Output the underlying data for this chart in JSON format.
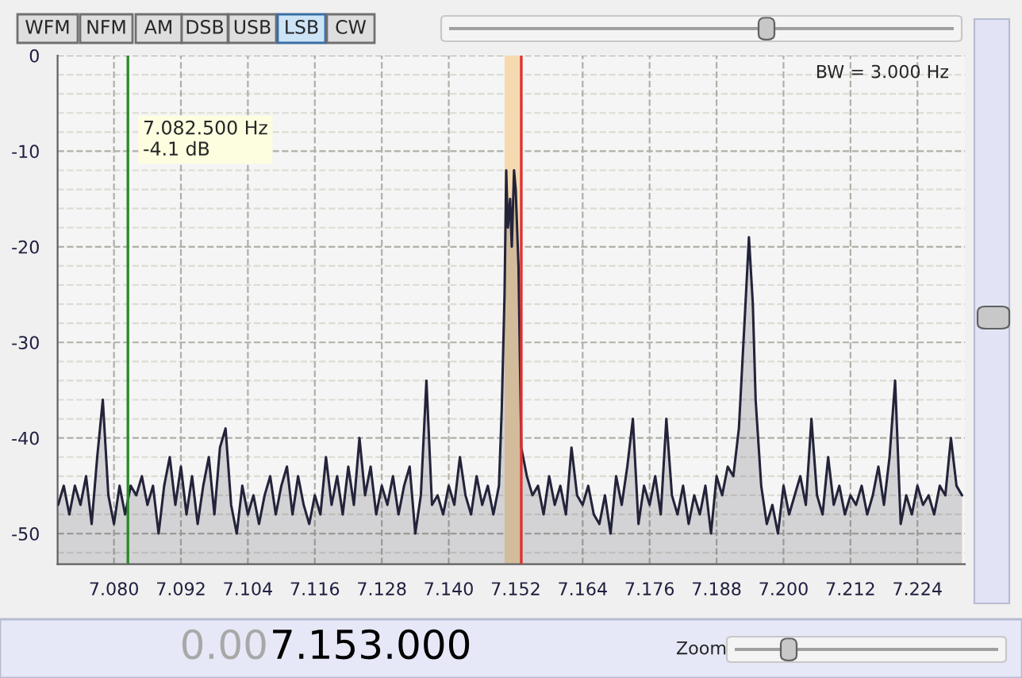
{
  "chart_data": {
    "type": "area",
    "x": [
      7.07,
      7.071,
      7.072,
      7.073,
      7.074,
      7.075,
      7.076,
      7.077,
      7.078,
      7.079,
      7.08,
      7.081,
      7.082,
      7.083,
      7.084,
      7.085,
      7.086,
      7.087,
      7.088,
      7.089,
      7.09,
      7.091,
      7.092,
      7.093,
      7.094,
      7.095,
      7.096,
      7.097,
      7.098,
      7.099,
      7.1,
      7.101,
      7.102,
      7.103,
      7.104,
      7.105,
      7.106,
      7.107,
      7.108,
      7.109,
      7.11,
      7.111,
      7.112,
      7.113,
      7.114,
      7.115,
      7.116,
      7.117,
      7.118,
      7.119,
      7.12,
      7.121,
      7.122,
      7.123,
      7.124,
      7.125,
      7.126,
      7.127,
      7.128,
      7.129,
      7.13,
      7.131,
      7.132,
      7.133,
      7.134,
      7.135,
      7.136,
      7.137,
      7.138,
      7.139,
      7.14,
      7.141,
      7.142,
      7.143,
      7.144,
      7.145,
      7.146,
      7.147,
      7.148,
      7.149,
      7.1495,
      7.15,
      7.1503,
      7.1506,
      7.151,
      7.1513,
      7.1517,
      7.152,
      7.1525,
      7.153,
      7.154,
      7.155,
      7.156,
      7.157,
      7.158,
      7.159,
      7.16,
      7.161,
      7.162,
      7.163,
      7.164,
      7.165,
      7.166,
      7.167,
      7.168,
      7.169,
      7.17,
      7.171,
      7.172,
      7.173,
      7.174,
      7.175,
      7.176,
      7.177,
      7.178,
      7.179,
      7.18,
      7.181,
      7.182,
      7.183,
      7.184,
      7.185,
      7.186,
      7.187,
      7.188,
      7.189,
      7.19,
      7.191,
      7.192,
      7.193,
      7.1938,
      7.1945,
      7.195,
      7.196,
      7.197,
      7.198,
      7.199,
      7.2,
      7.201,
      7.202,
      7.203,
      7.204,
      7.205,
      7.206,
      7.207,
      7.208,
      7.209,
      7.21,
      7.211,
      7.212,
      7.213,
      7.214,
      7.215,
      7.216,
      7.217,
      7.218,
      7.219,
      7.22,
      7.221,
      7.222,
      7.223,
      7.224,
      7.225,
      7.226,
      7.227,
      7.228,
      7.229,
      7.23,
      7.231,
      7.232
    ],
    "series": [
      {
        "color": "#23233a",
        "values": [
          -47,
          -45,
          -48,
          -45,
          -47,
          -44,
          -49,
          -42,
          -36,
          -46,
          -49,
          -45,
          -48,
          -45,
          -46,
          -44,
          -47,
          -45,
          -50,
          -45,
          -42,
          -47,
          -43,
          -48,
          -44,
          -49,
          -45,
          -42,
          -48,
          -41,
          -39,
          -47,
          -50,
          -45,
          -48,
          -46,
          -49,
          -46,
          -44,
          -48,
          -45,
          -43,
          -48,
          -44,
          -47,
          -49,
          -46,
          -48,
          -42,
          -47,
          -44,
          -48,
          -43,
          -47,
          -40,
          -46,
          -43,
          -48,
          -45,
          -47,
          -44,
          -48,
          -45,
          -43,
          -50,
          -46,
          -34,
          -47,
          -46,
          -48,
          -45,
          -47,
          -42,
          -46,
          -48,
          -44,
          -47,
          -45,
          -48,
          -45,
          -37,
          -25,
          -12,
          -18,
          -15,
          -20,
          -12,
          -14,
          -22,
          -41,
          -44,
          -46,
          -45,
          -48,
          -44,
          -47,
          -45,
          -48,
          -41,
          -46,
          -47,
          -45,
          -48,
          -49,
          -46,
          -50,
          -44,
          -47,
          -43,
          -38,
          -49,
          -45,
          -47,
          -44,
          -48,
          -38,
          -46,
          -48,
          -45,
          -49,
          -46,
          -48,
          -45,
          -50,
          -44,
          -46,
          -43,
          -44,
          -39,
          -28,
          -19,
          -26,
          -36,
          -45,
          -49,
          -47,
          -50,
          -45,
          -48,
          -46,
          -44,
          -47,
          -38,
          -46,
          -48,
          -42,
          -47,
          -45,
          -48,
          -46,
          -47,
          -45,
          -48,
          -46,
          -43,
          -47,
          -42,
          -34,
          -49,
          -46,
          -48,
          -45,
          -47,
          -46,
          -48,
          -45,
          -46,
          -40,
          -45,
          -46
        ]
      }
    ],
    "xlim": [
      7.0699,
      7.2325
    ],
    "xticks": [
      {
        "value": 7.08,
        "label": "7.080"
      },
      {
        "value": 7.092,
        "label": "7.092"
      },
      {
        "value": 7.104,
        "label": "7.104"
      },
      {
        "value": 7.116,
        "label": "7.116"
      },
      {
        "value": 7.128,
        "label": "7.128"
      },
      {
        "value": 7.14,
        "label": "7.140"
      },
      {
        "value": 7.152,
        "label": "7.152"
      },
      {
        "value": 7.164,
        "label": "7.164"
      },
      {
        "value": 7.176,
        "label": "7.176"
      },
      {
        "value": 7.188,
        "label": "7.188"
      },
      {
        "value": 7.2,
        "label": "7.200"
      },
      {
        "value": 7.212,
        "label": "7.212"
      },
      {
        "value": 7.224,
        "label": "7.224"
      }
    ],
    "ylim": [
      -53.2,
      0
    ],
    "yticks": [
      0,
      {
        "value": -2,
        "label": null
      },
      {
        "value": -4,
        "label": null
      },
      {
        "value": -6,
        "label": null
      },
      {
        "value": -8,
        "label": null
      },
      -10,
      {
        "value": -12,
        "label": null
      },
      {
        "value": -14,
        "label": null
      },
      {
        "value": -16,
        "label": null
      },
      {
        "value": -18,
        "label": null
      },
      -20,
      {
        "value": -22,
        "label": null
      },
      {
        "value": -24,
        "label": null
      },
      {
        "value": -26,
        "label": null
      },
      {
        "value": -28,
        "label": null
      },
      -30,
      {
        "value": -32,
        "label": null
      },
      {
        "value": -34,
        "label": null
      },
      {
        "value": -36,
        "label": null
      },
      {
        "value": -38,
        "label": null
      },
      -40,
      {
        "value": -42,
        "label": null
      },
      {
        "value": -44,
        "label": null
      },
      {
        "value": -46,
        "label": null
      },
      {
        "value": -48,
        "label": null
      },
      -50,
      {
        "value": -52,
        "label": null
      }
    ],
    "grid": true,
    "ref_lines": [
      {
        "axis": "x",
        "value": 7.0825,
        "color": "#2a8a2a"
      },
      {
        "axis": "x",
        "value": 7.153,
        "color": "#e03030"
      }
    ],
    "bands": [
      {
        "axis": "x",
        "from": 7.15,
        "to": 7.153,
        "color": "#f5d9b0"
      }
    ],
    "annotations": [
      "WFM",
      "NFM",
      "AM",
      "DSB",
      "USB",
      "LSB",
      "CW",
      "BW = 3.000 Hz",
      "7.082.500 Hz\n-4.1 dB",
      "0.00",
      "7.153.000",
      "Zoom"
    ]
  }
}
